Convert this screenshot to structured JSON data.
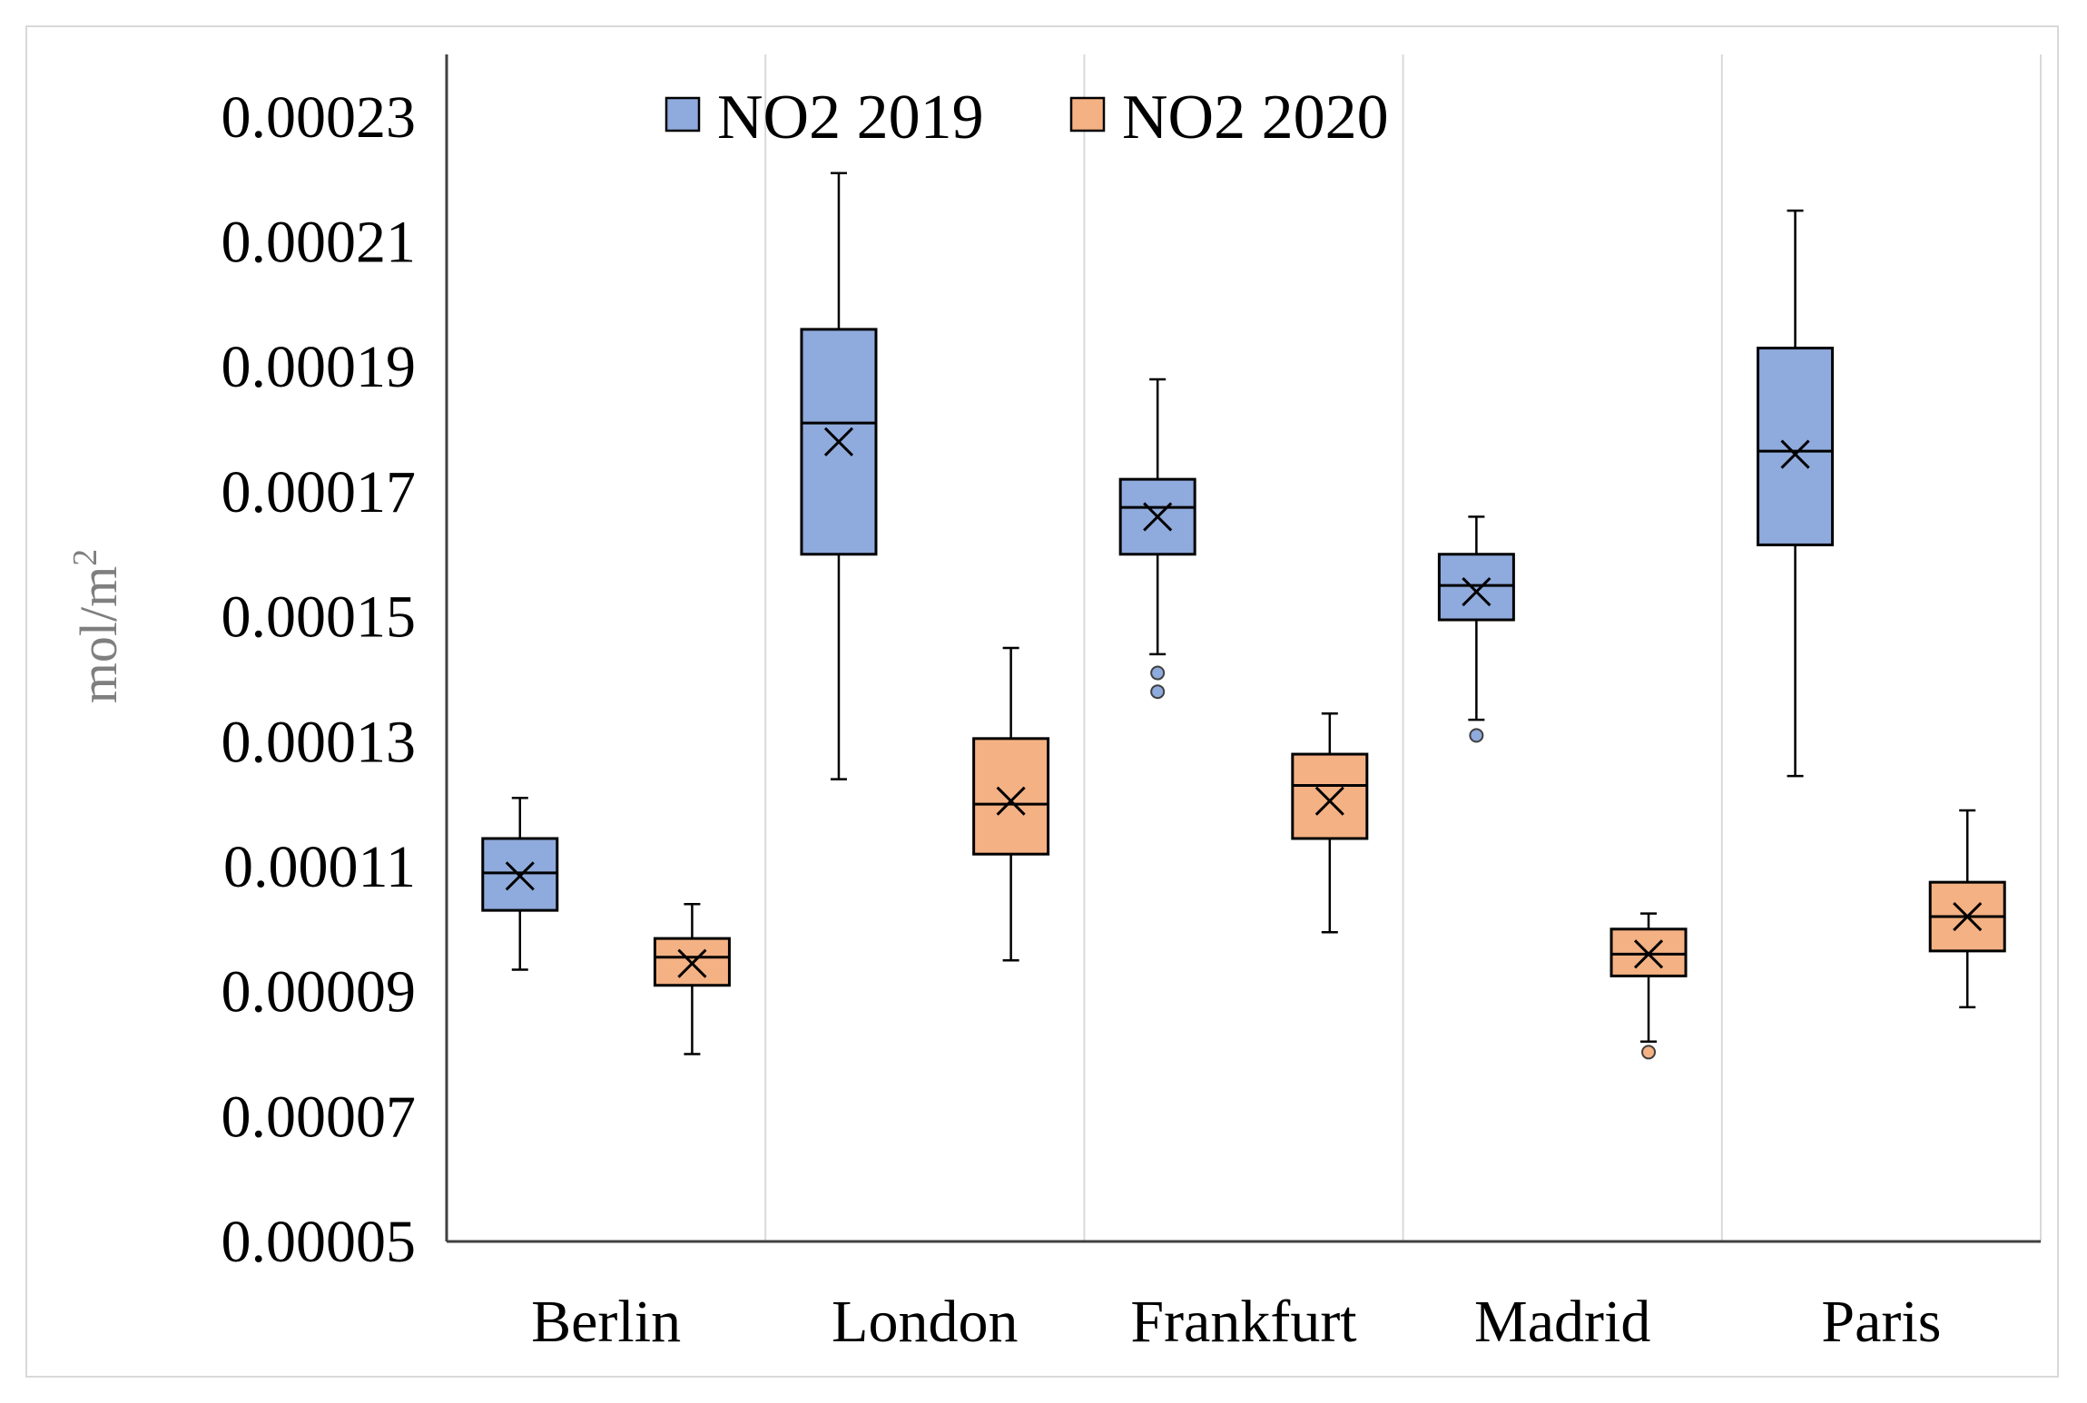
{
  "chart_data": {
    "type": "boxplot",
    "title": "",
    "xlabel": "",
    "ylabel": "mol/m",
    "ylabel_superscript": "2",
    "ylim": [
      5e-05,
      0.00024
    ],
    "yticks": [
      "0.00005",
      "0.00007",
      "0.00009",
      "0.00011",
      "0.00013",
      "0.00015",
      "0.00017",
      "0.00019",
      "0.00021",
      "0.00023"
    ],
    "ytick_values": [
      5e-05,
      7e-05,
      9e-05,
      0.00011,
      0.00013,
      0.00015,
      0.00017,
      0.00019,
      0.00021,
      0.00023
    ],
    "categories": [
      "Berlin",
      "London",
      "Frankfurt",
      "Madrid",
      "Paris"
    ],
    "legend_position": "top",
    "series": [
      {
        "name": "NO2 2019",
        "color": "#8FAADC",
        "boxes": [
          {
            "min": 9.35e-05,
            "q1": 0.000103,
            "median": 0.000109,
            "q3": 0.0001145,
            "max": 0.000121,
            "mean": 0.0001085,
            "outliers": []
          },
          {
            "min": 0.000124,
            "q1": 0.00016,
            "median": 0.000181,
            "q3": 0.000196,
            "max": 0.000221,
            "mean": 0.000178,
            "outliers": []
          },
          {
            "min": 0.000144,
            "q1": 0.00016,
            "median": 0.0001675,
            "q3": 0.000172,
            "max": 0.000188,
            "mean": 0.000166,
            "outliers": [
              0.000141,
              0.000138
            ]
          },
          {
            "min": 0.0001335,
            "q1": 0.0001495,
            "median": 0.000155,
            "q3": 0.00016,
            "max": 0.000166,
            "mean": 0.000154,
            "outliers": [
              0.000131
            ]
          },
          {
            "min": 0.0001245,
            "q1": 0.0001615,
            "median": 0.0001765,
            "q3": 0.000193,
            "max": 0.000215,
            "mean": 0.000176,
            "outliers": []
          }
        ]
      },
      {
        "name": "NO2 2020",
        "color": "#F4B183",
        "boxes": [
          {
            "min": 8e-05,
            "q1": 9.1e-05,
            "median": 9.55e-05,
            "q3": 9.85e-05,
            "max": 0.000104,
            "mean": 9.45e-05,
            "outliers": []
          },
          {
            "min": 9.5e-05,
            "q1": 0.000112,
            "median": 0.00012,
            "q3": 0.0001305,
            "max": 0.000145,
            "mean": 0.0001205,
            "outliers": []
          },
          {
            "min": 9.95e-05,
            "q1": 0.0001145,
            "median": 0.000123,
            "q3": 0.000128,
            "max": 0.0001345,
            "mean": 0.0001205,
            "outliers": []
          },
          {
            "min": 8.2e-05,
            "q1": 9.25e-05,
            "median": 9.6e-05,
            "q3": 0.0001,
            "max": 0.0001025,
            "mean": 9.6e-05,
            "outliers": [
              8.03e-05
            ]
          },
          {
            "min": 8.75e-05,
            "q1": 9.65e-05,
            "median": 0.000102,
            "q3": 0.0001075,
            "max": 0.000119,
            "mean": 0.000102,
            "outliers": []
          }
        ]
      }
    ]
  }
}
